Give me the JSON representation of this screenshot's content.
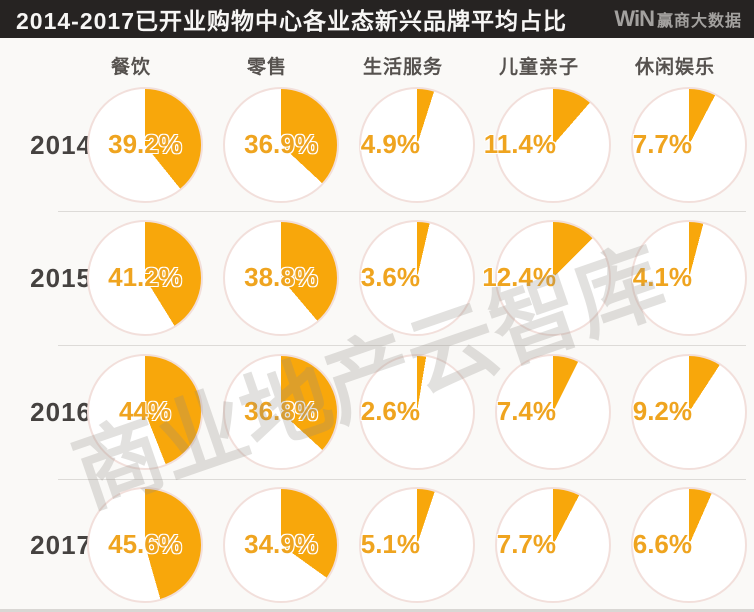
{
  "header": {
    "title": "2014-2017已开业购物中心各业态新兴品牌平均占比",
    "logo_win": "WiN",
    "logo_suffix": "赢商大数据"
  },
  "watermark": "商业地产云智库",
  "chart_data": {
    "type": "pie",
    "title": "2014-2017已开业购物中心各业态新兴品牌平均占比",
    "categories": [
      "餐饮",
      "零售",
      "生活服务",
      "儿童亲子",
      "休闲娱乐"
    ],
    "rows": [
      {
        "year": "2014",
        "values": [
          39.2,
          36.9,
          4.9,
          11.4,
          7.7
        ],
        "labels": [
          "39.2%",
          "36.9%",
          "4.9%",
          "11.4%",
          "7.7%"
        ]
      },
      {
        "year": "2015",
        "values": [
          41.2,
          38.8,
          3.6,
          12.4,
          4.1
        ],
        "labels": [
          "41.2%",
          "38.8%",
          "3.6%",
          "12.4%",
          "4.1%"
        ]
      },
      {
        "year": "2016",
        "values": [
          44,
          36.8,
          2.6,
          7.4,
          9.2
        ],
        "labels": [
          "44%",
          "36.8%",
          "2.6%",
          "7.4%",
          "9.2%"
        ]
      },
      {
        "year": "2017",
        "values": [
          45.6,
          34.9,
          5.1,
          7.7,
          6.6
        ],
        "labels": [
          "45.6%",
          "34.9%",
          "5.1%",
          "7.7%",
          "6.6%"
        ]
      }
    ],
    "unit": "%",
    "slice_start_angle_deg": 0,
    "slice_direction": "clockwise",
    "legend_position": "none",
    "grid": "off"
  },
  "colors": {
    "slice": "#F8A70B",
    "circle_fill": "#FFFFFF",
    "circle_border": "#F2DFDB",
    "pct_text": "#EFA41F",
    "header_bg": "#262322",
    "header_text": "#F7F6F5",
    "page_bg": "#FAF9F7"
  }
}
